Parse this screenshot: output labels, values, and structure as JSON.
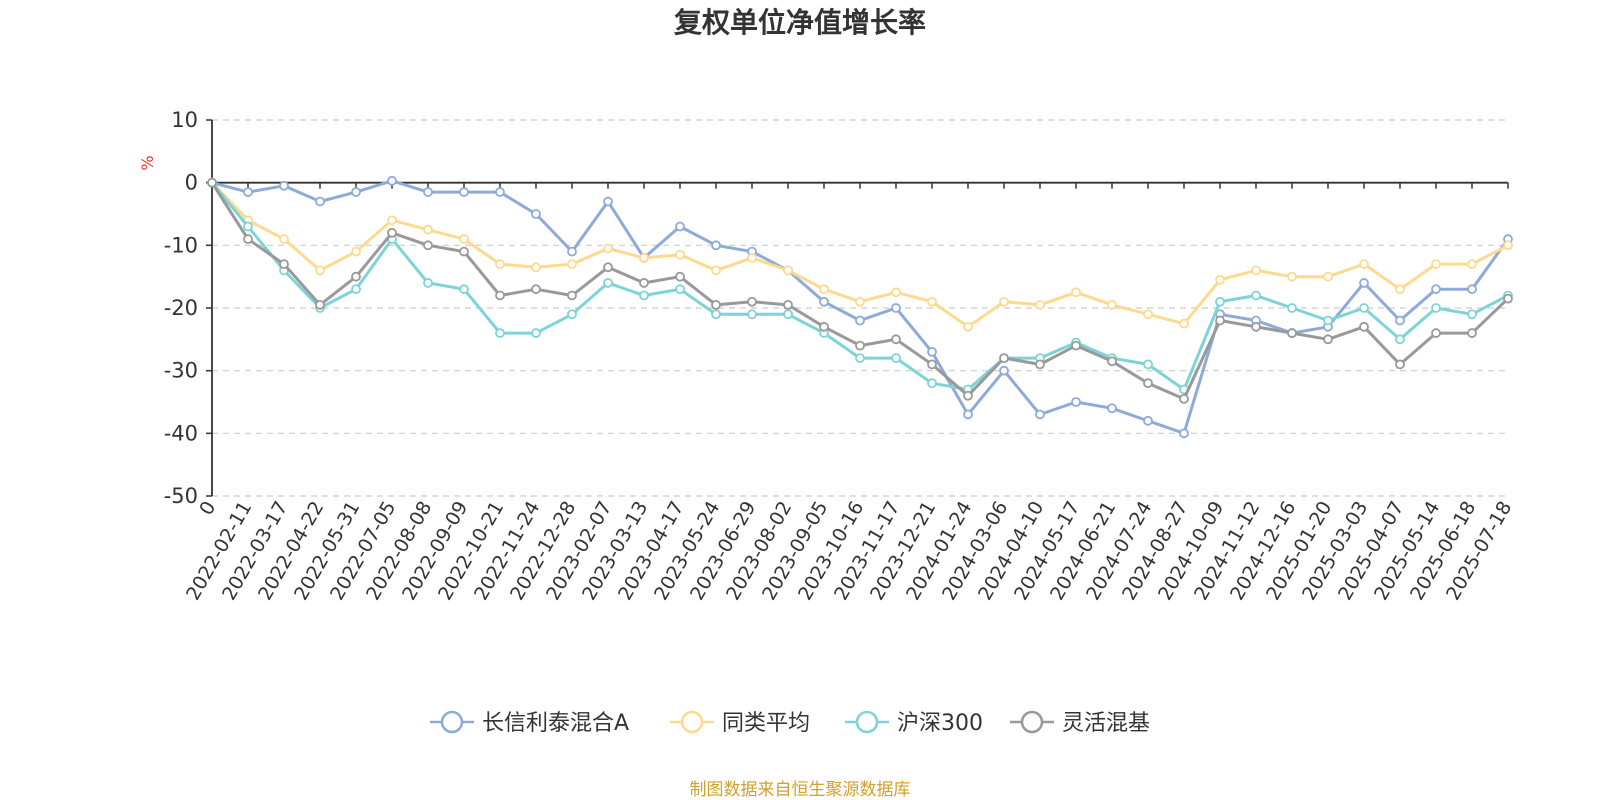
{
  "colors": {
    "fund": "#8eaadb",
    "peer": "#ffd98e",
    "hs300": "#7dd4d6",
    "flexible": "#999999",
    "unit": "#e3342f",
    "source": "#d2a02b",
    "grid": "#cccccc",
    "axis": "#333333"
  },
  "chart_data": {
    "type": "line",
    "title": "复权单位净值增长率",
    "ylabel": "%",
    "ylim": [
      -50,
      10
    ],
    "yticks": [
      10,
      0,
      -10,
      -20,
      -30,
      -40,
      -50
    ],
    "ytick_labels": [
      "10",
      "0",
      "-10",
      "-20",
      "-30",
      "-40",
      "-50"
    ],
    "grid": "horizontal-dashed",
    "legend_position": "bottom-center",
    "x_tick_labels": [
      "0",
      "2022-02-11",
      "2022-03-17",
      "2022-04-22",
      "2022-05-31",
      "2022-07-05",
      "2022-08-08",
      "2022-09-09",
      "2022-10-21",
      "2022-11-24",
      "2022-12-28",
      "2023-02-07",
      "2023-03-13",
      "2023-04-17",
      "2023-05-24",
      "2023-06-29",
      "2023-08-02",
      "2023-09-05",
      "2023-10-16",
      "2023-11-17",
      "2023-12-21",
      "2024-01-24",
      "2024-03-06",
      "2024-04-10",
      "2024-05-17",
      "2024-06-21",
      "2024-07-24",
      "2024-08-27",
      "2024-10-09",
      "2024-11-12",
      "2024-12-16",
      "2025-01-20",
      "2025-03-03",
      "2025-04-07",
      "2025-05-14",
      "2025-06-18",
      "2025-07-18"
    ],
    "x": [
      "0",
      "2022-02-11",
      "2022-03-17",
      "2022-04-22",
      "2022-05-31",
      "2022-07-05",
      "2022-08-08",
      "2022-09-09",
      "2022-10-21",
      "2022-11-24",
      "2022-12-28",
      "2023-02-07",
      "2023-03-13",
      "2023-04-17",
      "2023-05-24",
      "2023-06-29",
      "2023-08-02",
      "2023-09-05",
      "2023-10-16",
      "2023-11-17",
      "2023-12-21",
      "2024-01-24",
      "2024-03-06",
      "2024-04-10",
      "2024-05-17",
      "2024-06-21",
      "2024-07-24",
      "2024-08-27",
      "2024-10-09",
      "2024-11-12",
      "2024-12-16",
      "2025-01-20",
      "2025-03-03",
      "2025-04-07",
      "2025-05-14",
      "2025-06-18",
      "2025-07-18"
    ],
    "series": [
      {
        "name": "长信利泰混合A",
        "color_key": "fund",
        "values": [
          0,
          -1.5,
          -0.5,
          -3,
          -1.5,
          0.3,
          -1.5,
          -1.5,
          -1.5,
          -5,
          -11,
          -3,
          -12,
          -7,
          -10,
          -11,
          -14,
          -19,
          -22,
          -20,
          -27,
          -37,
          -30,
          -37,
          -35,
          -36,
          -38,
          -40,
          -21,
          -22,
          -24,
          -23,
          -16,
          -22,
          -17,
          -17,
          -9
        ]
      },
      {
        "name": "同类平均",
        "color_key": "peer",
        "values": [
          0,
          -6,
          -9,
          -14,
          -11,
          -6,
          -7.5,
          -9,
          -13,
          -13.5,
          -13,
          -10.5,
          -12,
          -11.5,
          -14,
          -12,
          -14,
          -17,
          -19,
          -17.5,
          -19,
          -23,
          -19,
          -19.5,
          -17.5,
          -19.5,
          -21,
          -22.5,
          -15.5,
          -14,
          -15,
          -15,
          -13,
          -17,
          -13,
          -13,
          -10
        ]
      },
      {
        "name": "沪深300",
        "color_key": "hs300",
        "values": [
          0,
          -7,
          -14,
          -20,
          -17,
          -9,
          -16,
          -17,
          -24,
          -24,
          -21,
          -16,
          -18,
          -17,
          -21,
          -21,
          -21,
          -24,
          -28,
          -28,
          -32,
          -33,
          -28,
          -28,
          -25.5,
          -28,
          -29,
          -33,
          -19,
          -18,
          -20,
          -22,
          -20,
          -25,
          -20,
          -21,
          -18
        ]
      },
      {
        "name": "灵活混基",
        "color_key": "flexible",
        "values": [
          0,
          -9,
          -13,
          -19.5,
          -15,
          -8,
          -10,
          -11,
          -18,
          -17,
          -18,
          -13.5,
          -16,
          -15,
          -19.5,
          -19,
          -19.5,
          -23,
          -26,
          -25,
          -29,
          -34,
          -28,
          -29,
          -26,
          -28.5,
          -32,
          -34.5,
          -22,
          -23,
          -24,
          -25,
          -23,
          -29,
          -24,
          -24,
          -18.5
        ]
      }
    ]
  },
  "footer": {
    "source": "制图数据来自恒生聚源数据库"
  }
}
